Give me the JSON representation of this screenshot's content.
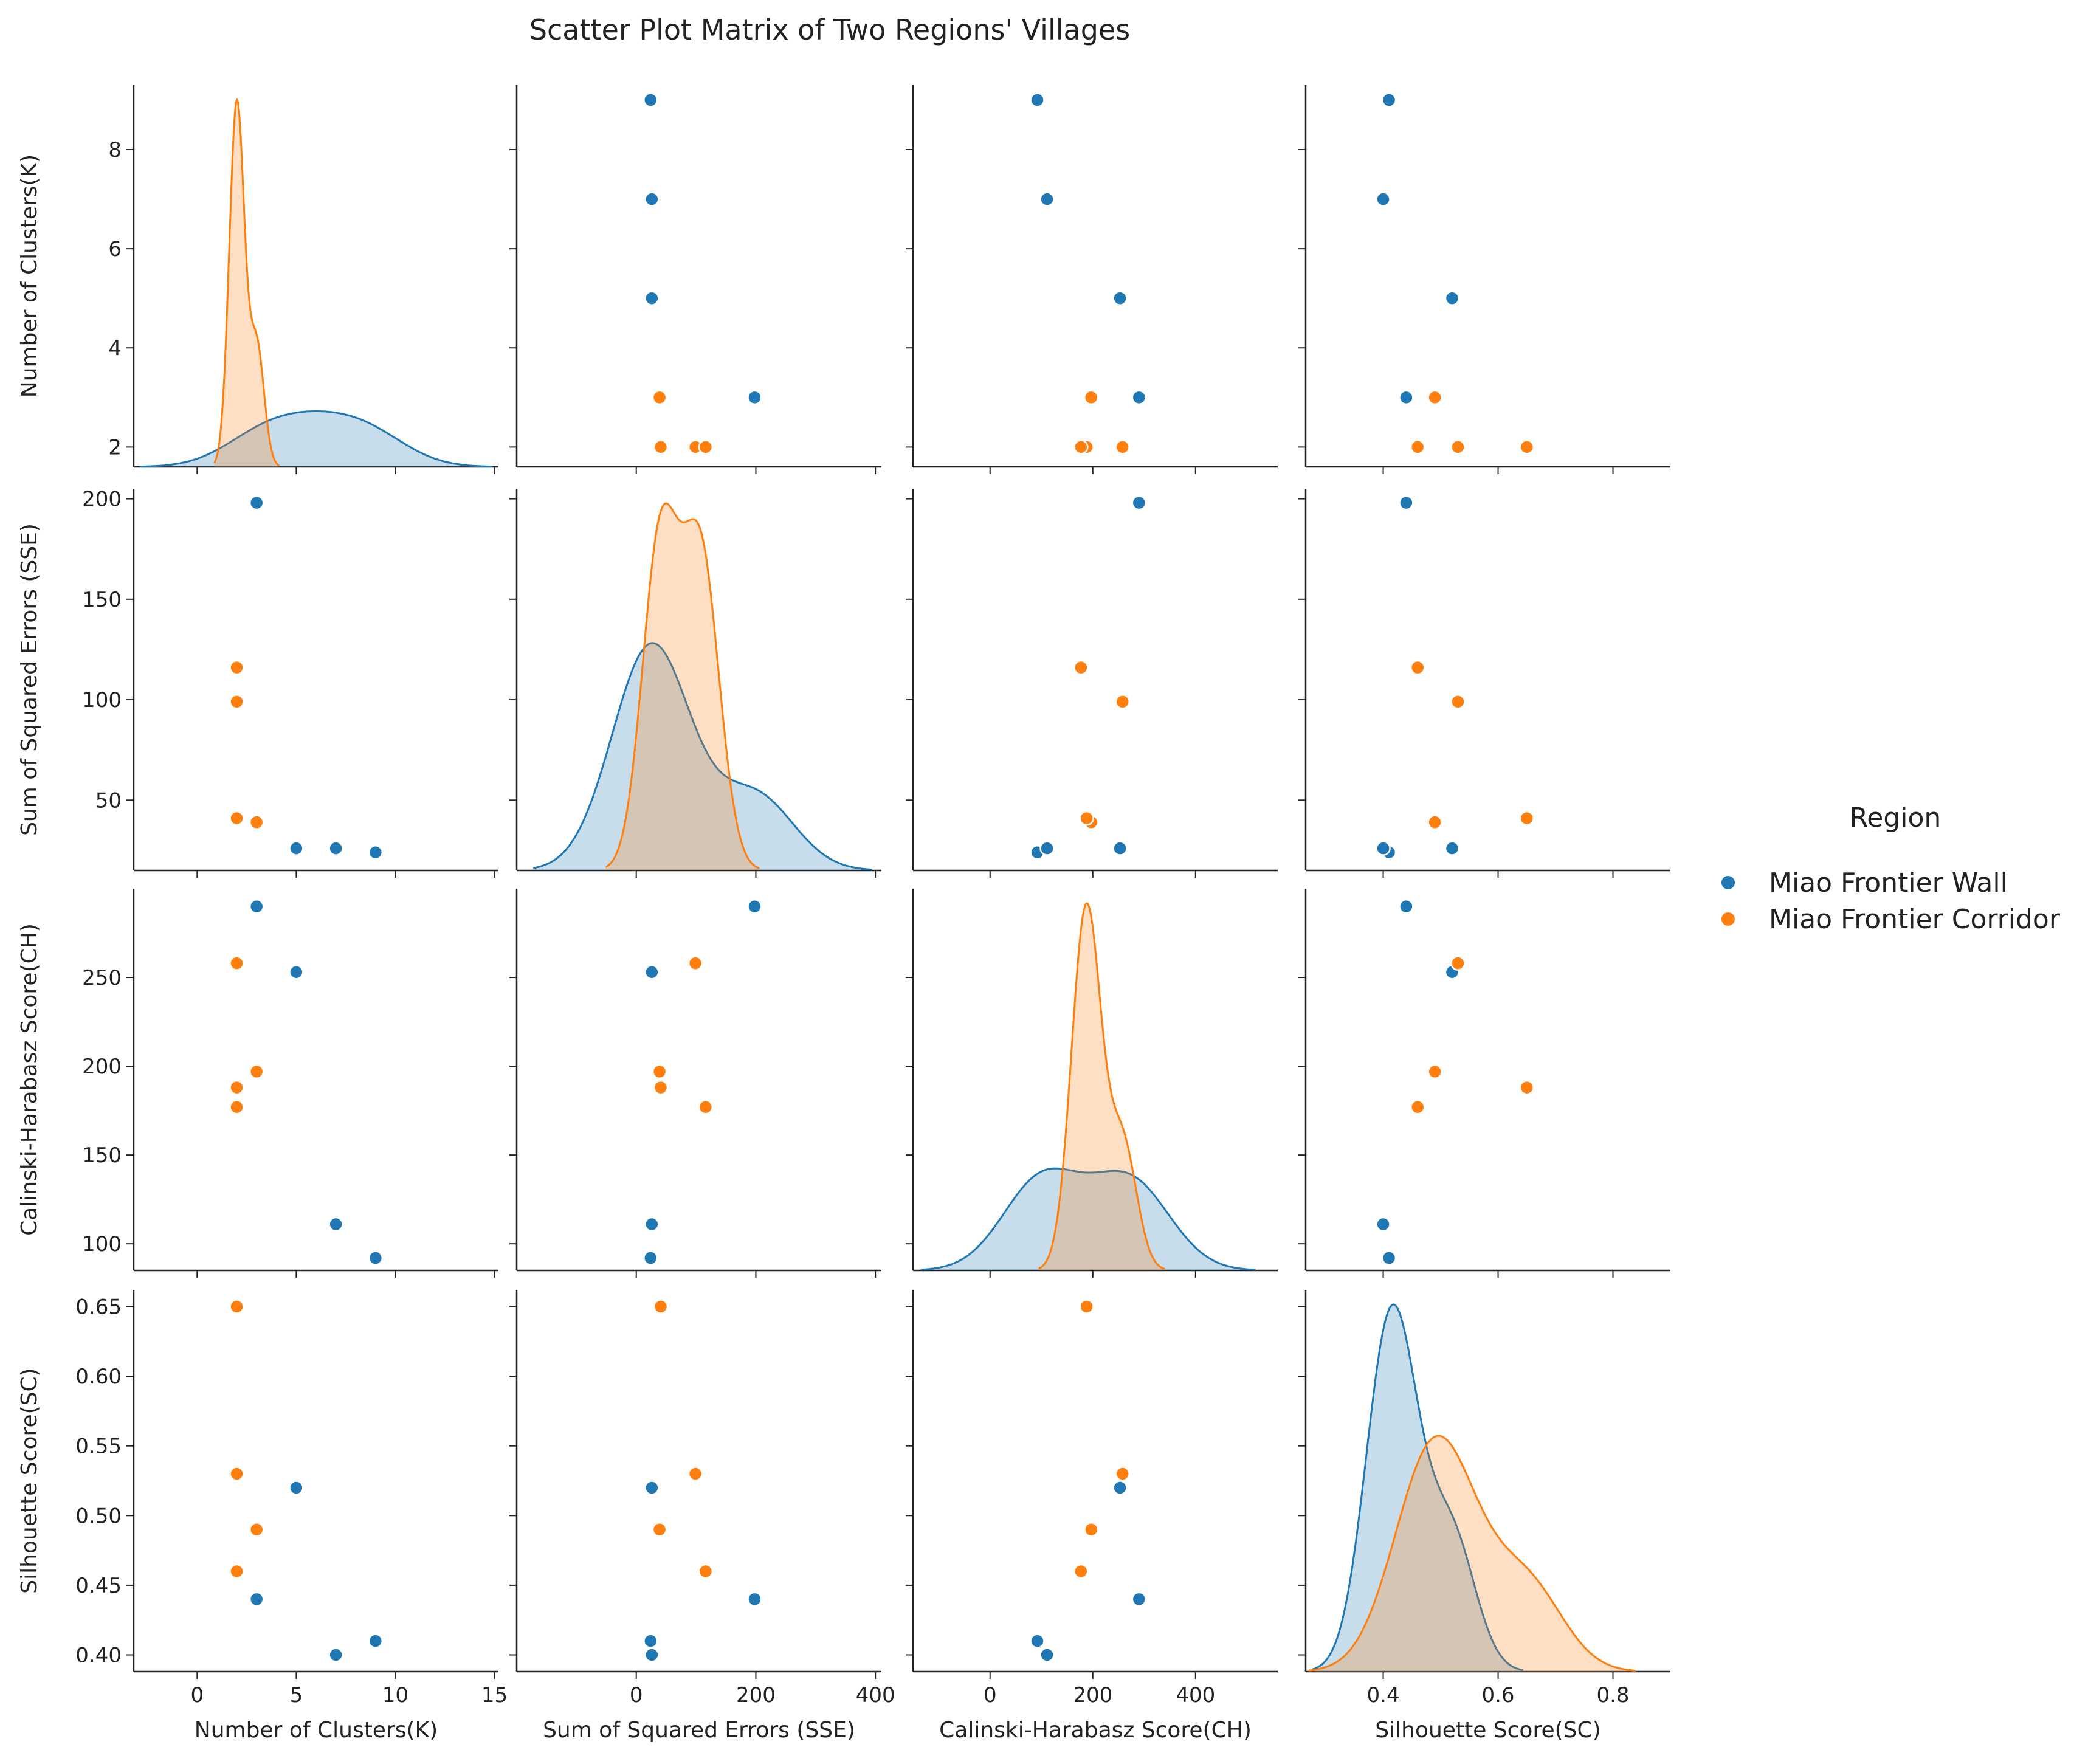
{
  "title": "Scatter Plot Matrix of Two Regions' Villages",
  "chart_data": {
    "type": "scatter",
    "title": "Scatter Plot Matrix of Two Regions' Villages",
    "variables": [
      {
        "key": "K",
        "label": "Number of Clusters(K)",
        "lim": [
          -3.2,
          15.2
        ],
        "ticks": [
          0,
          5,
          10,
          15
        ],
        "tick_labels": [
          "0",
          "5",
          "10",
          "15"
        ],
        "yticks": [
          2,
          4,
          6,
          8
        ],
        "ytick_labels": [
          "2",
          "4",
          "6",
          "8"
        ],
        "ylim": [
          1.6,
          9.3
        ]
      },
      {
        "key": "SSE",
        "label": "Sum of Squared Errors (SSE)",
        "lim": [
          -200,
          410
        ],
        "ticks": [
          0,
          200,
          400
        ],
        "tick_labels": [
          "0",
          "200",
          "400"
        ],
        "yticks": [
          50,
          100,
          150,
          200
        ],
        "ytick_labels": [
          "50",
          "100",
          "150",
          "200"
        ],
        "ylim": [
          15,
          205
        ]
      },
      {
        "key": "CH",
        "label": "Calinski-Harabasz Score(CH)",
        "lim": [
          -150,
          560
        ],
        "ticks": [
          0,
          200,
          400
        ],
        "tick_labels": [
          "0",
          "200",
          "400"
        ],
        "yticks": [
          100,
          150,
          200,
          250
        ],
        "ytick_labels": [
          "100",
          "150",
          "200",
          "250"
        ],
        "ylim": [
          85,
          300
        ]
      },
      {
        "key": "SC",
        "label": "Silhouette Score(SC)",
        "lim": [
          0.265,
          0.9
        ],
        "ticks": [
          0.4,
          0.6,
          0.8
        ],
        "tick_labels": [
          "0.4",
          "0.6",
          "0.8"
        ],
        "yticks": [
          0.4,
          0.45,
          0.5,
          0.55,
          0.6,
          0.65
        ],
        "ytick_labels": [
          "0.40",
          "0.45",
          "0.50",
          "0.55",
          "0.60",
          "0.65"
        ],
        "ylim": [
          0.388,
          0.662
        ]
      }
    ],
    "series": [
      {
        "name": "Miao Frontier Wall",
        "color": "#1f77b4",
        "points": [
          {
            "K": 9,
            "SSE": 24,
            "CH": 92,
            "SC": 0.41
          },
          {
            "K": 7,
            "SSE": 26,
            "CH": 111,
            "SC": 0.4
          },
          {
            "K": 5,
            "SSE": 26,
            "CH": 253,
            "SC": 0.52
          },
          {
            "K": 3,
            "SSE": 198,
            "CH": 290,
            "SC": 0.44
          }
        ]
      },
      {
        "name": "Miao Frontier Corridor",
        "color": "#ff7f0e",
        "points": [
          {
            "K": 3,
            "SSE": 39,
            "CH": 197,
            "SC": 0.49
          },
          {
            "K": 2,
            "SSE": 41,
            "CH": 188,
            "SC": 0.65
          },
          {
            "K": 2,
            "SSE": 99,
            "CH": 258,
            "SC": 0.53
          },
          {
            "K": 2,
            "SSE": 116,
            "CH": 177,
            "SC": 0.46
          }
        ]
      }
    ],
    "diagonal": "kde",
    "legend": {
      "title": "Region",
      "placement": "right"
    }
  }
}
